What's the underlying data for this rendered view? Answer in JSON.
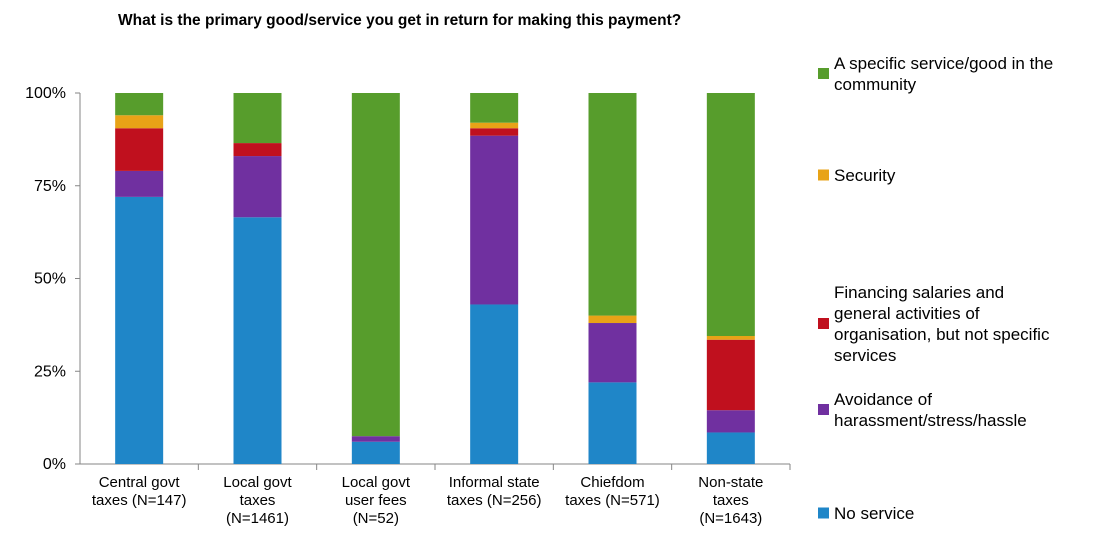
{
  "chart_data": {
    "type": "bar",
    "stacked": true,
    "percent": true,
    "title": "What is the primary good/service you get in return for making this payment?",
    "xlabel": "",
    "ylabel": "",
    "ylim": [
      0,
      100
    ],
    "yticks": [
      "0%",
      "25%",
      "50%",
      "75%",
      "100%"
    ],
    "grid": false,
    "legend_position": "right",
    "categories": [
      [
        "Central govt",
        "taxes (N=147)"
      ],
      [
        "Local govt",
        "taxes",
        "(N=1461)"
      ],
      [
        "Local govt",
        "user fees",
        "(N=52)"
      ],
      [
        "Informal state",
        "taxes (N=256)"
      ],
      [
        "Chiefdom",
        "taxes (N=571)"
      ],
      [
        "Non-state",
        "taxes",
        "(N=1643)"
      ]
    ],
    "series": [
      {
        "name": "No service",
        "color": "#1F86C8",
        "values": [
          72,
          66.5,
          6,
          43,
          22,
          8.5
        ]
      },
      {
        "name": "Avoidance of harassment/stress/hassle",
        "color": "#7030A0",
        "values": [
          7,
          16.5,
          1.5,
          45.5,
          16,
          6
        ]
      },
      {
        "name": "Financing salaries and general activities of organisation, but not specific services",
        "color": "#C0101E",
        "values": [
          11.5,
          3.5,
          0,
          2,
          0,
          19
        ]
      },
      {
        "name": "Security",
        "color": "#E8A317",
        "values": [
          3.5,
          0,
          0,
          1.5,
          2,
          1
        ]
      },
      {
        "name": "A specific service/good in the community",
        "color": "#579D2C",
        "values": [
          6,
          13.5,
          92.5,
          8,
          60,
          65.5
        ]
      }
    ],
    "legend_lines": [
      {
        "series": 4,
        "lines": [
          "A specific service/good in the",
          "community"
        ]
      },
      {
        "series": 3,
        "lines": [
          "Security"
        ]
      },
      {
        "series": 2,
        "lines": [
          "Financing salaries and",
          "general activities of",
          "organisation, but not specific",
          "services"
        ]
      },
      {
        "series": 1,
        "lines": [
          "Avoidance of",
          "harassment/stress/hassle"
        ]
      },
      {
        "series": 0,
        "lines": [
          "No service"
        ]
      }
    ]
  }
}
